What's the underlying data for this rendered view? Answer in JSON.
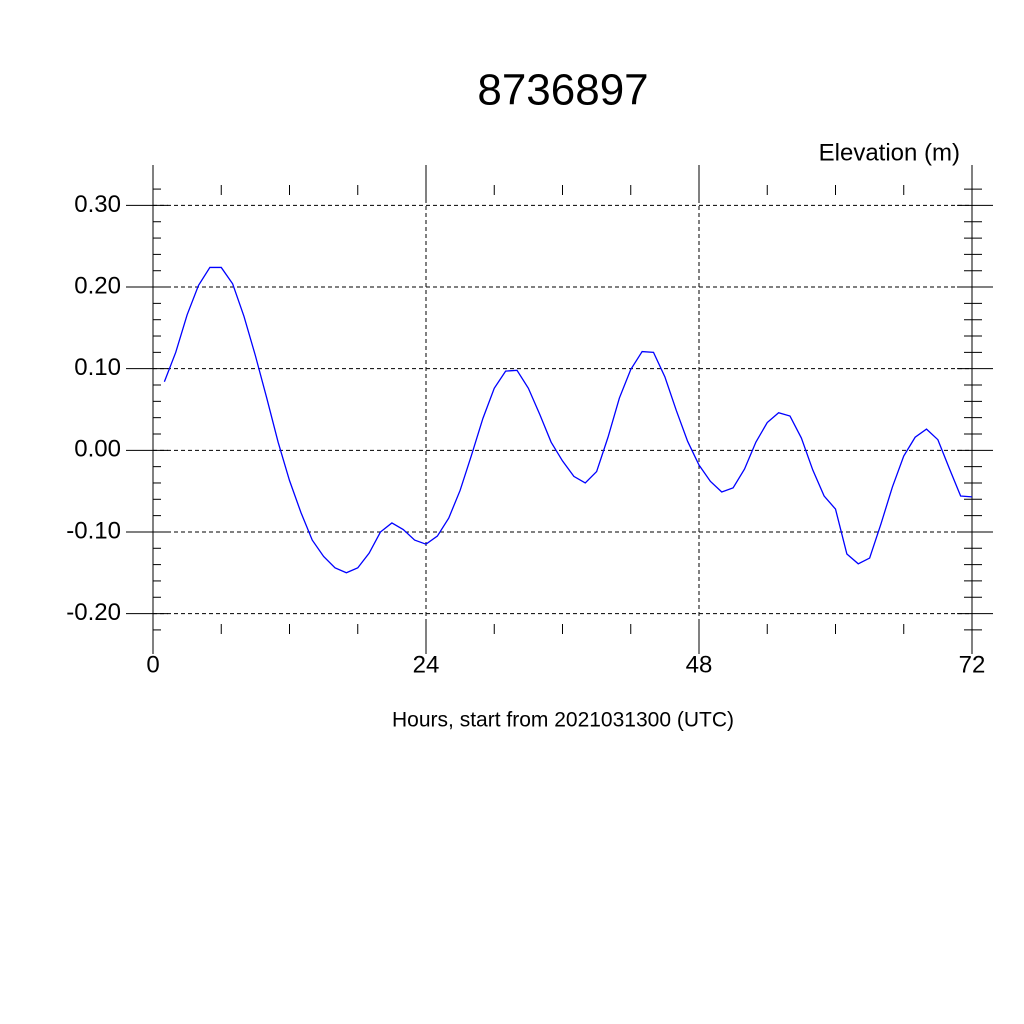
{
  "chart_data": {
    "type": "line",
    "title": "8736897",
    "y_label": "Elevation (m)",
    "x_label": "Hours, start from 2021031300 (UTC)",
    "x": [
      1,
      2,
      3,
      4,
      5,
      6,
      7,
      8,
      9,
      10,
      11,
      12,
      13,
      14,
      15,
      16,
      17,
      18,
      19,
      20,
      21,
      22,
      23,
      24,
      25,
      26,
      27,
      28,
      29,
      30,
      31,
      32,
      33,
      34,
      35,
      36,
      37,
      38,
      39,
      40,
      41,
      42,
      43,
      44,
      45,
      46,
      47,
      48,
      49,
      50,
      51,
      52,
      53,
      54,
      55,
      56,
      57,
      58,
      59,
      60,
      61,
      62,
      63,
      64,
      65,
      66,
      67,
      68,
      69,
      70,
      71,
      72
    ],
    "series": [
      {
        "color": "#0000ff",
        "values": [
          0.084,
          0.12,
          0.166,
          0.202,
          0.224,
          0.224,
          0.204,
          0.164,
          0.116,
          0.064,
          0.01,
          -0.037,
          -0.076,
          -0.11,
          -0.13,
          -0.144,
          -0.15,
          -0.144,
          -0.126,
          -0.1,
          -0.089,
          -0.097,
          -0.11,
          -0.115,
          -0.105,
          -0.083,
          -0.049,
          -0.006,
          0.039,
          0.076,
          0.097,
          0.098,
          0.076,
          0.044,
          0.01,
          -0.013,
          -0.032,
          -0.04,
          -0.026,
          0.016,
          0.064,
          0.099,
          0.121,
          0.12,
          0.09,
          0.049,
          0.011,
          -0.018,
          -0.038,
          -0.051,
          -0.046,
          -0.023,
          0.01,
          0.034,
          0.046,
          0.042,
          0.015,
          -0.024,
          -0.056,
          -0.072,
          -0.127,
          -0.139,
          -0.132,
          -0.09,
          -0.045,
          -0.007,
          0.016,
          0.026,
          0.013,
          -0.022,
          -0.056,
          -0.057
        ]
      }
    ],
    "xlim": [
      0,
      72
    ],
    "xticks": [
      0,
      24,
      48,
      72
    ],
    "xminorticks": [
      6,
      12,
      18,
      30,
      36,
      42,
      54,
      60,
      66
    ],
    "ylim": [
      -0.225,
      0.325
    ],
    "yticks": [
      {
        "value": -0.2,
        "label": "-0.20"
      },
      {
        "value": -0.1,
        "label": "-0.10"
      },
      {
        "value": 0,
        "label": "0.00"
      },
      {
        "value": 0.1,
        "label": "0.10"
      },
      {
        "value": 0.2,
        "label": "0.20"
      },
      {
        "value": 0.3,
        "label": "0.30"
      }
    ],
    "yminorticks": [
      -0.22,
      -0.18,
      -0.16,
      -0.14,
      -0.12,
      -0.08,
      -0.06,
      -0.04,
      -0.02,
      0.02,
      0.04,
      0.06,
      0.08,
      0.12,
      0.14,
      0.16,
      0.18,
      0.22,
      0.24,
      0.26,
      0.28,
      0.32
    ],
    "grid": true
  }
}
